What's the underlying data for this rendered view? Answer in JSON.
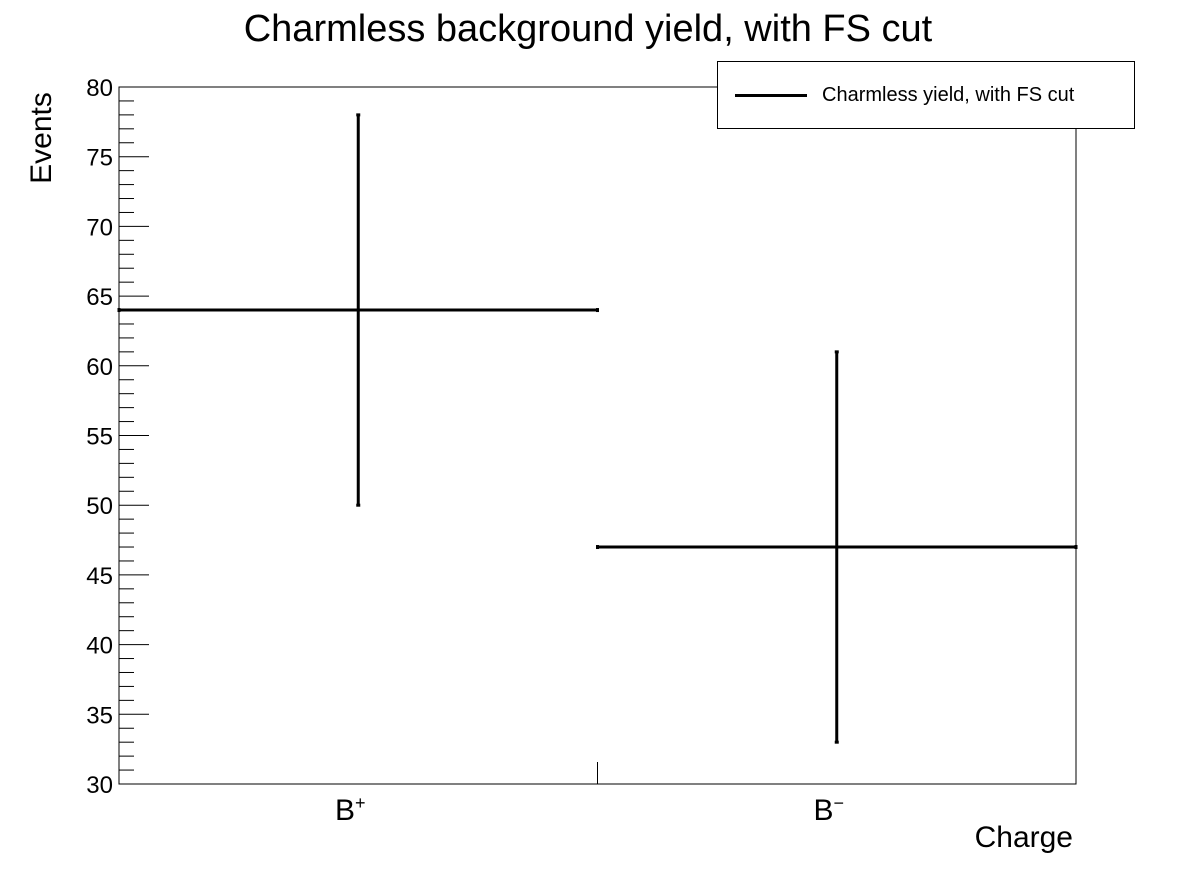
{
  "chart_data": {
    "type": "bar",
    "title": "Charmless background yield, with FS cut",
    "xlabel": "Charge",
    "ylabel": "Events",
    "categories": [
      {
        "base": "B",
        "sup": "+"
      },
      {
        "base": "B",
        "sup": "−"
      }
    ],
    "series": [
      {
        "name": "Charmless yield, with FS cut",
        "values": [
          64,
          47
        ],
        "errors": [
          14,
          14
        ],
        "color": "#000000"
      }
    ],
    "ylim": [
      30,
      80
    ],
    "yticks": [
      30,
      35,
      40,
      45,
      50,
      55,
      60,
      65,
      70,
      75,
      80
    ],
    "grid": false,
    "legend_position": "top-right"
  }
}
